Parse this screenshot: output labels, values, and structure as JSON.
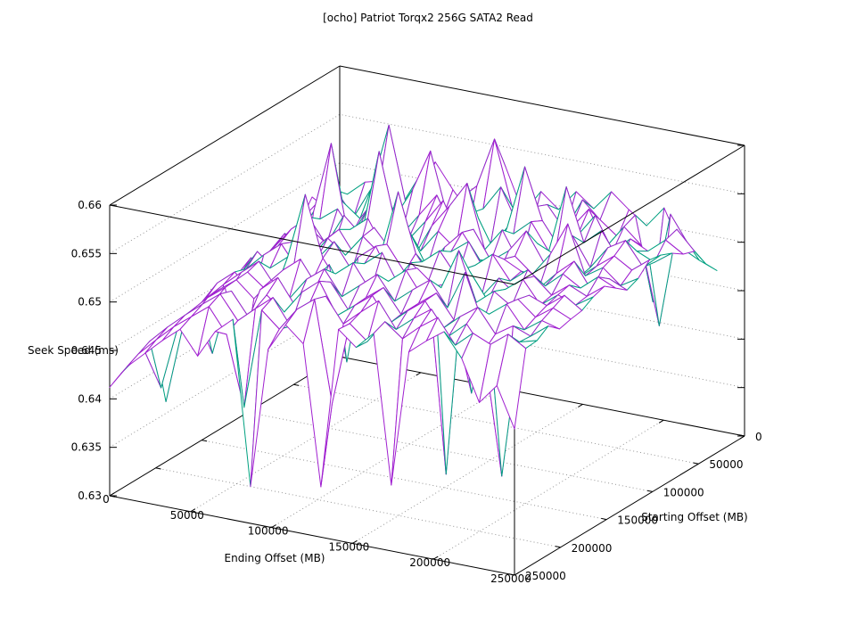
{
  "page": {
    "background": "#ffffff"
  },
  "chart_data": {
    "type": "surface3d-wireframe",
    "title": "[ocho] Patriot Torqx2 256G SATA2 Read",
    "xlabel": "Ending Offset (MB)",
    "ylabel": "Starting Offset (MB)",
    "zlabel": "Seek Speed (ms)",
    "xlim": [
      0,
      250000
    ],
    "ylim": [
      0,
      250000
    ],
    "zlim": [
      0.63,
      0.66
    ],
    "xticks": [
      {
        "v": 0,
        "label": "0"
      },
      {
        "v": 50000,
        "label": "50000"
      },
      {
        "v": 100000,
        "label": "100000"
      },
      {
        "v": 150000,
        "label": "150000"
      },
      {
        "v": 200000,
        "label": "200000"
      },
      {
        "v": 250000,
        "label": "250000"
      }
    ],
    "yticks": [
      {
        "v": 0,
        "label": "0"
      },
      {
        "v": 50000,
        "label": "50000"
      },
      {
        "v": 100000,
        "label": "100000"
      },
      {
        "v": 150000,
        "label": "150000"
      },
      {
        "v": 200000,
        "label": "200000"
      },
      {
        "v": 250000,
        "label": "250000"
      }
    ],
    "zticks": [
      {
        "v": 0.63,
        "label": "0.63"
      },
      {
        "v": 0.635,
        "label": "0.635"
      },
      {
        "v": 0.64,
        "label": "0.64"
      },
      {
        "v": 0.645,
        "label": "0.645"
      },
      {
        "v": 0.65,
        "label": "0.65"
      },
      {
        "v": 0.655,
        "label": "0.655"
      },
      {
        "v": 0.66,
        "label": "0.66"
      }
    ],
    "grid": true,
    "legend": "none",
    "colors": {
      "surface_top": "#A020D0",
      "surface_bottom": "#00A080",
      "box": "#000000",
      "grid": "#999999",
      "text": "#000000",
      "background": "#ffffff"
    },
    "surface": {
      "x_start": 0,
      "x_end": 250000,
      "y_start": 30000,
      "y_end": 250000,
      "cols": 24,
      "rows": 19,
      "z_grid": [
        [
          0.6482,
          0.6471,
          0.6492,
          0.6508,
          0.6513,
          0.6489,
          0.6522,
          0.6543,
          0.6518,
          0.6496,
          0.6531,
          0.6552,
          0.6508,
          0.6534,
          0.6519,
          0.6541,
          0.6527,
          0.6548,
          0.6533,
          0.652,
          0.6542,
          0.6504,
          0.6495,
          0.6488
        ],
        [
          0.6465,
          0.6488,
          0.6503,
          0.6479,
          0.6512,
          0.6581,
          0.6501,
          0.6527,
          0.6493,
          0.6519,
          0.6536,
          0.6588,
          0.6522,
          0.6495,
          0.6531,
          0.6508,
          0.6543,
          0.6526,
          0.6512,
          0.6538,
          0.6452,
          0.6546,
          0.6519,
          0.6502
        ],
        [
          0.6402,
          0.6471,
          0.6456,
          0.6502,
          0.6488,
          0.6515,
          0.6497,
          0.6529,
          0.6572,
          0.6506,
          0.6481,
          0.6523,
          0.6549,
          0.6512,
          0.6536,
          0.6498,
          0.6521,
          0.6544,
          0.6509,
          0.6533,
          0.6517,
          0.6438,
          0.6541,
          0.6522
        ],
        [
          0.6438,
          0.6462,
          0.6495,
          0.6569,
          0.6473,
          0.6506,
          0.6521,
          0.6489,
          0.6513,
          0.6537,
          0.6502,
          0.6526,
          0.6491,
          0.6518,
          0.6584,
          0.6532,
          0.6507,
          0.6524,
          0.6548,
          0.6515,
          0.6531,
          0.6522,
          0.6537,
          0.6526
        ],
        [
          0.6451,
          0.6476,
          0.6419,
          0.6498,
          0.6512,
          0.6487,
          0.6503,
          0.6528,
          0.6494,
          0.6517,
          0.6542,
          0.6506,
          0.6531,
          0.6497,
          0.6522,
          0.6538,
          0.6511,
          0.6581,
          0.6527,
          0.6543,
          0.6516,
          0.6529,
          0.6521,
          0.6534
        ],
        [
          0.6443,
          0.6468,
          0.6491,
          0.6507,
          0.6482,
          0.6516,
          0.6499,
          0.6589,
          0.6512,
          0.6488,
          0.6523,
          0.6547,
          0.6574,
          0.6509,
          0.6533,
          0.6501,
          0.6526,
          0.6518,
          0.6541,
          0.6512,
          0.6536,
          0.6547,
          0.6523,
          0.6539
        ],
        [
          0.6429,
          0.6457,
          0.6483,
          0.6469,
          0.6501,
          0.6488,
          0.6512,
          0.6527,
          0.6496,
          0.6519,
          0.6504,
          0.6528,
          0.6513,
          0.6537,
          0.6508,
          0.6522,
          0.6546,
          0.6517,
          0.6532,
          0.6509,
          0.6524,
          0.6538,
          0.6527,
          0.6541
        ],
        [
          0.6446,
          0.6472,
          0.6458,
          0.6487,
          0.6408,
          0.6502,
          0.6519,
          0.6493,
          0.6528,
          0.6507,
          0.6531,
          0.6498,
          0.6522,
          0.6541,
          0.6516,
          0.6503,
          0.6527,
          0.6512,
          0.6536,
          0.6571,
          0.6521,
          0.6533,
          0.6518,
          0.6529
        ],
        [
          0.6435,
          0.6461,
          0.6489,
          0.6474,
          0.6506,
          0.6492,
          0.6517,
          0.6503,
          0.6526,
          0.6511,
          0.6579,
          0.6519,
          0.6494,
          0.6528,
          0.6542,
          0.6513,
          0.6531,
          0.6522,
          0.6508,
          0.6527,
          0.6543,
          0.6516,
          0.6532,
          0.6524
        ],
        [
          0.6388,
          0.6453,
          0.6478,
          0.6496,
          0.6511,
          0.6487,
          0.6502,
          0.6524,
          0.6498,
          0.6516,
          0.6532,
          0.6507,
          0.6521,
          0.6536,
          0.6512,
          0.6528,
          0.6543,
          0.6519,
          0.6534,
          0.6521,
          0.6537,
          0.6526,
          0.6541,
          0.6533
        ],
        [
          0.6441,
          0.6467,
          0.6482,
          0.6459,
          0.6493,
          0.6508,
          0.6576,
          0.6514,
          0.6489,
          0.6522,
          0.6537,
          0.6503,
          0.6527,
          0.6512,
          0.6316,
          0.6531,
          0.6506,
          0.6529,
          0.6515,
          0.6538,
          0.6522,
          0.6536,
          0.6528,
          0.6542
        ],
        [
          0.6433,
          0.6458,
          0.6476,
          0.6492,
          0.6507,
          0.6483,
          0.6511,
          0.6496,
          0.6518,
          0.6421,
          0.6526,
          0.6541,
          0.6509,
          0.6532,
          0.6517,
          0.6524,
          0.6539,
          0.6513,
          0.6528,
          0.6542,
          0.6519,
          0.6533,
          0.6526,
          0.6538
        ],
        [
          0.6427,
          0.6451,
          0.6412,
          0.6481,
          0.6503,
          0.6489,
          0.6512,
          0.6527,
          0.6501,
          0.6519,
          0.6534,
          0.6508,
          0.6522,
          0.6537,
          0.6511,
          0.6526,
          0.6568,
          0.6518,
          0.6533,
          0.6521,
          0.6536,
          0.6529,
          0.6543,
          0.6531
        ],
        [
          0.6362,
          0.6446,
          0.6471,
          0.6488,
          0.6502,
          0.6486,
          0.6509,
          0.6493,
          0.6517,
          0.6531,
          0.6506,
          0.6521,
          0.6536,
          0.6512,
          0.6527,
          0.6541,
          0.6516,
          0.6556,
          0.6508,
          0.6526,
          0.6539,
          0.6524,
          0.6537,
          0.6529
        ],
        [
          0.6428,
          0.6452,
          0.6469,
          0.6487,
          0.6501,
          0.6417,
          0.6506,
          0.6522,
          0.6496,
          0.6513,
          0.6528,
          0.6503,
          0.6519,
          0.6533,
          0.6509,
          0.6524,
          0.6538,
          0.6514,
          0.6442,
          0.6527,
          0.6541,
          0.6518,
          0.6531,
          0.6526
        ],
        [
          0.6431,
          0.6394,
          0.6463,
          0.6479,
          0.6494,
          0.6508,
          0.6484,
          0.6511,
          0.6497,
          0.6521,
          0.6536,
          0.6504,
          0.6518,
          0.6532,
          0.6507,
          0.6523,
          0.6537,
          0.6512,
          0.6528,
          0.6541,
          0.6517,
          0.6529,
          0.6522,
          0.6536
        ],
        [
          0.6424,
          0.6449,
          0.6467,
          0.6483,
          0.6498,
          0.6512,
          0.6488,
          0.6504,
          0.6519,
          0.6493,
          0.6517,
          0.6531,
          0.6506,
          0.6522,
          0.6537,
          0.6511,
          0.6526,
          0.6539,
          0.6515,
          0.6531,
          0.6507,
          0.6381,
          0.6523,
          0.6528
        ],
        [
          0.6419,
          0.6443,
          0.6461,
          0.6478,
          0.6492,
          0.6506,
          0.6481,
          0.6409,
          0.6513,
          0.6497,
          0.6521,
          0.6535,
          0.6431,
          0.6517,
          0.6502,
          0.6526,
          0.6512,
          0.6528,
          0.6541,
          0.6516,
          0.6532,
          0.6524,
          0.6538,
          0.6527
        ],
        [
          0.6412,
          0.6437,
          0.6454,
          0.6471,
          0.6486,
          0.6462,
          0.6491,
          0.6507,
          0.6338,
          0.6483,
          0.6512,
          0.6496,
          0.6352,
          0.6518,
          0.6503,
          0.6521,
          0.6368,
          0.6509,
          0.6524,
          0.6537,
          0.6513,
          0.6471,
          0.6492,
          0.6451
        ]
      ]
    }
  }
}
